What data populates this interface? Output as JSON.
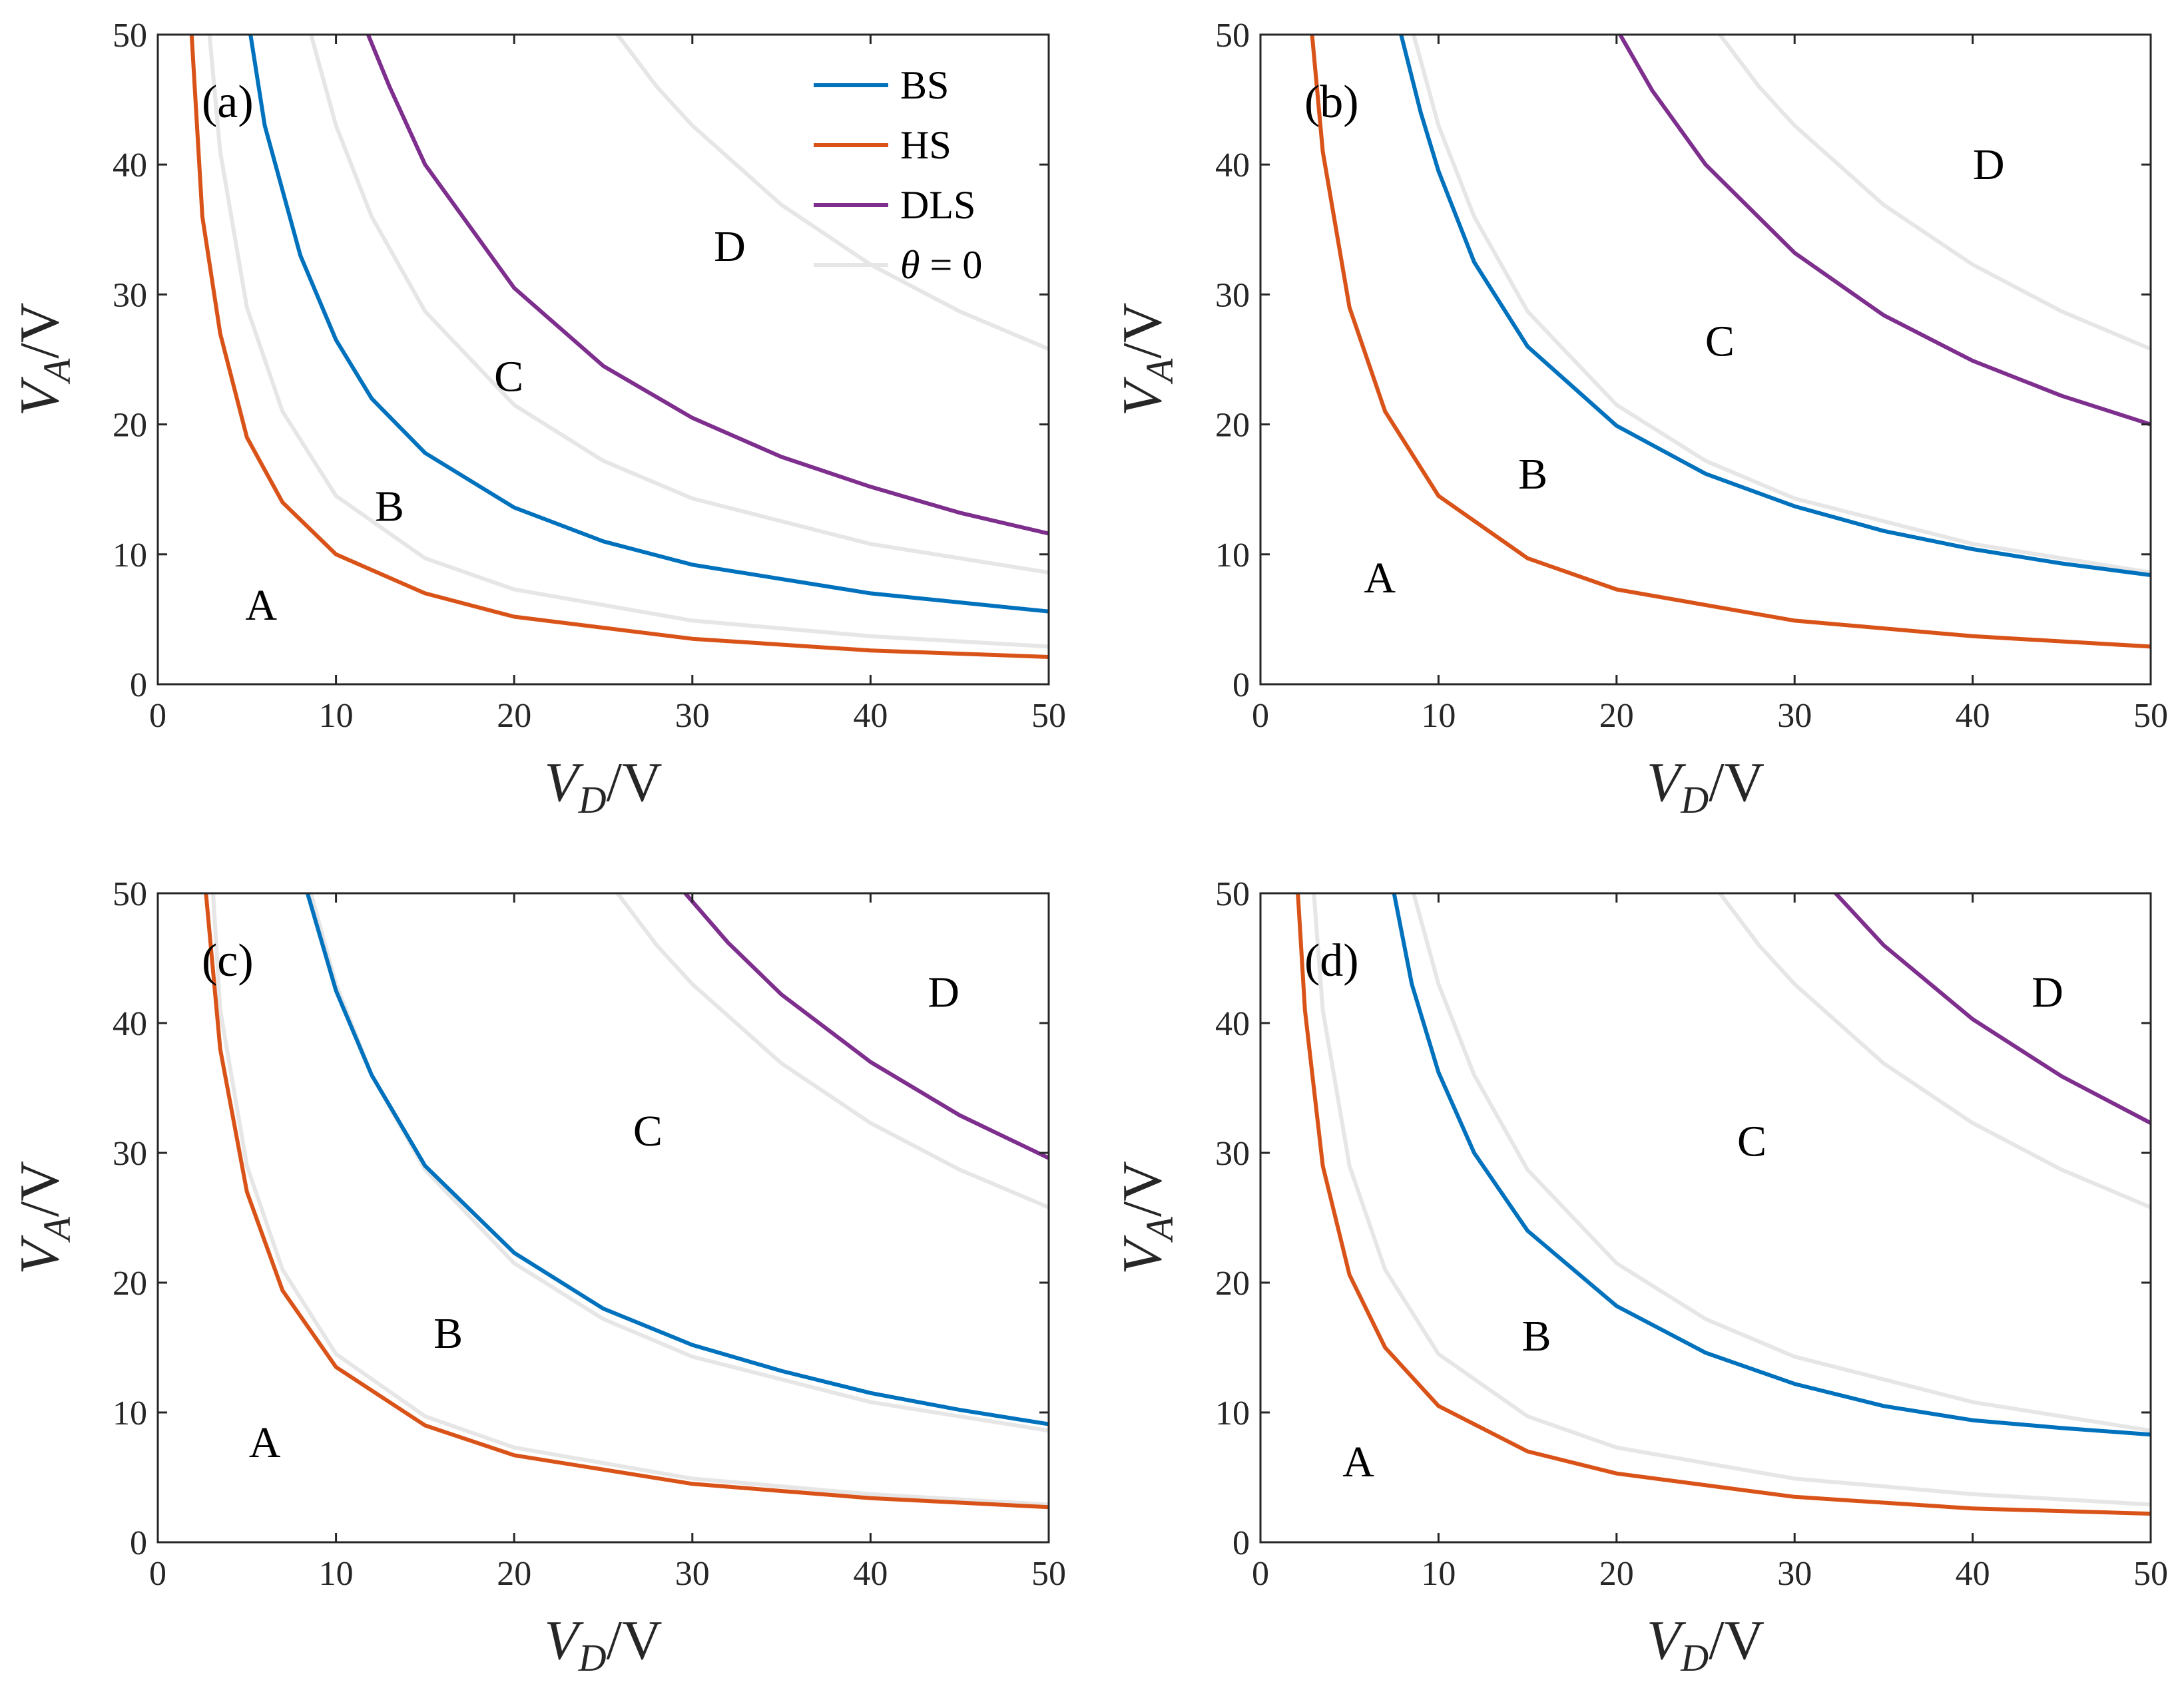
{
  "figure": {
    "colors": {
      "BS": "#0072BD",
      "HS": "#D95319",
      "DLS": "#7E2F8E",
      "theta0": "#E6E6E6",
      "axis": "#262626"
    },
    "legend": {
      "entries": [
        {
          "key": "BS",
          "label": "BS"
        },
        {
          "key": "HS",
          "label": "HS"
        },
        {
          "key": "DLS",
          "label": "DLS"
        },
        {
          "key": "theta0",
          "label": "θ = 0"
        }
      ]
    }
  },
  "chart_data": [
    {
      "type": "line",
      "panel_label": "(a)",
      "xlabel": "V_D/V",
      "ylabel": "V_A/V",
      "xlim": [
        0,
        50
      ],
      "ylim": [
        0,
        50
      ],
      "xticks": [
        0,
        10,
        20,
        30,
        40,
        50
      ],
      "yticks": [
        0,
        10,
        20,
        30,
        40,
        50
      ],
      "legend_position": "top-right",
      "series": [
        {
          "name": "HS",
          "color": "HS",
          "x": [
            1.9,
            2.5,
            3.5,
            5,
            7,
            10,
            15,
            20,
            30,
            40,
            50
          ],
          "y": [
            50,
            36,
            27,
            19,
            14,
            10,
            7,
            5.2,
            3.5,
            2.6,
            2.1
          ]
        },
        {
          "name": "BS",
          "color": "BS",
          "x": [
            5.2,
            6,
            8,
            10,
            12,
            15,
            20,
            25,
            30,
            40,
            50
          ],
          "y": [
            50,
            43,
            33,
            26.5,
            22,
            17.8,
            13.6,
            11,
            9.2,
            7,
            5.6
          ]
        },
        {
          "name": "DLS",
          "color": "DLS",
          "x": [
            11.8,
            13,
            15,
            20,
            25,
            30,
            35,
            40,
            45,
            50
          ],
          "y": [
            50,
            46,
            40,
            30.5,
            24.5,
            20.5,
            17.5,
            15.2,
            13.2,
            11.6
          ]
        },
        {
          "name": "θ = 0",
          "color": "theta0",
          "x": [
            2.9,
            3.5,
            5,
            7,
            10,
            15,
            20,
            30,
            40,
            50
          ],
          "y": [
            50,
            41,
            29,
            21,
            14.5,
            9.7,
            7.3,
            4.9,
            3.7,
            2.9
          ]
        },
        {
          "name": "θ = 0",
          "color": "theta0",
          "x": [
            8.6,
            10,
            12,
            15,
            20,
            25,
            30,
            40,
            50
          ],
          "y": [
            50,
            43,
            36,
            28.7,
            21.5,
            17.2,
            14.3,
            10.8,
            8.6
          ]
        },
        {
          "name": "θ = 0",
          "color": "theta0",
          "x": [
            25.8,
            28,
            30,
            35,
            40,
            45,
            50
          ],
          "y": [
            50,
            46,
            43,
            36.9,
            32.3,
            28.7,
            25.8
          ]
        }
      ],
      "region_labels": [
        {
          "text": "A",
          "x": 5.8,
          "y": 6.2
        },
        {
          "text": "B",
          "x": 13,
          "y": 13.8
        },
        {
          "text": "C",
          "x": 19.7,
          "y": 23.8
        },
        {
          "text": "D",
          "x": 32.1,
          "y": 33.8
        }
      ]
    },
    {
      "type": "line",
      "panel_label": "(b)",
      "xlabel": "V_D/V",
      "ylabel": "V_A/V",
      "xlim": [
        0,
        50
      ],
      "ylim": [
        0,
        50
      ],
      "xticks": [
        0,
        10,
        20,
        30,
        40,
        50
      ],
      "yticks": [
        0,
        10,
        20,
        30,
        40,
        50
      ],
      "series": [
        {
          "name": "HS",
          "color": "HS",
          "x": [
            2.9,
            3.5,
            5,
            7,
            10,
            15,
            20,
            30,
            40,
            50
          ],
          "y": [
            50,
            41,
            29,
            21,
            14.5,
            9.7,
            7.3,
            4.9,
            3.7,
            2.9
          ]
        },
        {
          "name": "BS",
          "color": "BS",
          "x": [
            7.9,
            9,
            10,
            12,
            15,
            20,
            25,
            30,
            35,
            40,
            45,
            50
          ],
          "y": [
            50,
            44,
            39.5,
            32.5,
            26,
            19.9,
            16.2,
            13.7,
            11.8,
            10.4,
            9.3,
            8.4
          ]
        },
        {
          "name": "DLS",
          "color": "DLS",
          "x": [
            20.2,
            22,
            25,
            30,
            35,
            40,
            45,
            50
          ],
          "y": [
            50,
            45.7,
            40,
            33.2,
            28.4,
            24.9,
            22.2,
            20
          ]
        },
        {
          "name": "θ = 0",
          "color": "theta0",
          "x": [
            2.9,
            3.5,
            5,
            7,
            10,
            15,
            20,
            30,
            40,
            50
          ],
          "y": [
            50,
            41,
            29,
            21,
            14.5,
            9.7,
            7.3,
            4.9,
            3.7,
            2.9
          ]
        },
        {
          "name": "θ = 0",
          "color": "theta0",
          "x": [
            8.6,
            10,
            12,
            15,
            20,
            25,
            30,
            40,
            50
          ],
          "y": [
            50,
            43,
            36,
            28.7,
            21.5,
            17.2,
            14.3,
            10.8,
            8.6
          ]
        },
        {
          "name": "θ = 0",
          "color": "theta0",
          "x": [
            25.8,
            28,
            30,
            35,
            40,
            45,
            50
          ],
          "y": [
            50,
            46,
            43,
            36.9,
            32.3,
            28.7,
            25.8
          ]
        }
      ],
      "region_labels": [
        {
          "text": "A",
          "x": 6.7,
          "y": 8.3
        },
        {
          "text": "B",
          "x": 15.3,
          "y": 16.3
        },
        {
          "text": "C",
          "x": 25.8,
          "y": 26.5
        },
        {
          "text": "D",
          "x": 40.9,
          "y": 40.1
        }
      ]
    },
    {
      "type": "line",
      "panel_label": "(c)",
      "xlabel": "V_D/V",
      "ylabel": "V_A/V",
      "xlim": [
        0,
        50
      ],
      "ylim": [
        0,
        50
      ],
      "xticks": [
        0,
        10,
        20,
        30,
        40,
        50
      ],
      "yticks": [
        0,
        10,
        20,
        30,
        40,
        50
      ],
      "series": [
        {
          "name": "θ = 0",
          "color": "theta0",
          "x": [
            3.1,
            3.5,
            5,
            7,
            10,
            15,
            20,
            30,
            40,
            50
          ],
          "y": [
            50,
            41,
            29,
            21,
            14.5,
            9.7,
            7.3,
            4.9,
            3.7,
            2.9
          ]
        },
        {
          "name": "θ = 0",
          "color": "theta0",
          "x": [
            8.6,
            10,
            12,
            15,
            20,
            25,
            30,
            40,
            50
          ],
          "y": [
            50,
            43,
            36,
            28.7,
            21.5,
            17.2,
            14.3,
            10.8,
            8.6
          ]
        },
        {
          "name": "θ = 0",
          "color": "theta0",
          "x": [
            25.8,
            28,
            30,
            35,
            40,
            45,
            50
          ],
          "y": [
            50,
            46,
            43,
            36.9,
            32.3,
            28.7,
            25.8
          ]
        },
        {
          "name": "HS",
          "color": "HS",
          "x": [
            2.7,
            3.5,
            5,
            7,
            10,
            15,
            20,
            30,
            40,
            50
          ],
          "y": [
            50,
            38,
            27,
            19.4,
            13.5,
            9,
            6.7,
            4.5,
            3.4,
            2.7
          ]
        },
        {
          "name": "BS",
          "color": "BS",
          "x": [
            8.4,
            10,
            12,
            15,
            20,
            25,
            30,
            35,
            40,
            45,
            50
          ],
          "y": [
            50,
            42.5,
            36,
            29,
            22.3,
            18,
            15.2,
            13.2,
            11.5,
            10.2,
            9.1
          ]
        },
        {
          "name": "DLS",
          "color": "DLS",
          "x": [
            29.6,
            32,
            35,
            40,
            45,
            50
          ],
          "y": [
            50,
            46.2,
            42.2,
            37,
            32.9,
            29.6
          ]
        }
      ],
      "region_labels": [
        {
          "text": "A",
          "x": 6,
          "y": 7.8
        },
        {
          "text": "B",
          "x": 16.3,
          "y": 16.2
        },
        {
          "text": "C",
          "x": 27.5,
          "y": 31.8
        },
        {
          "text": "D",
          "x": 44.1,
          "y": 42.5
        }
      ]
    },
    {
      "type": "line",
      "panel_label": "(d)",
      "xlabel": "V_D/V",
      "ylabel": "V_A/V",
      "xlim": [
        0,
        50
      ],
      "ylim": [
        0,
        50
      ],
      "xticks": [
        0,
        10,
        20,
        30,
        40,
        50
      ],
      "yticks": [
        0,
        10,
        20,
        30,
        40,
        50
      ],
      "series": [
        {
          "name": "θ = 0",
          "color": "theta0",
          "x": [
            3,
            3.5,
            5,
            7,
            10,
            15,
            20,
            30,
            40,
            50
          ],
          "y": [
            50,
            41,
            29,
            21,
            14.5,
            9.7,
            7.3,
            4.9,
            3.7,
            2.9
          ]
        },
        {
          "name": "θ = 0",
          "color": "theta0",
          "x": [
            8.6,
            10,
            12,
            15,
            20,
            25,
            30,
            40,
            50
          ],
          "y": [
            50,
            43,
            36,
            28.7,
            21.5,
            17.2,
            14.3,
            10.8,
            8.6
          ]
        },
        {
          "name": "θ = 0",
          "color": "theta0",
          "x": [
            25.8,
            28,
            30,
            35,
            40,
            45,
            50
          ],
          "y": [
            50,
            46,
            43,
            36.9,
            32.3,
            28.7,
            25.8
          ]
        },
        {
          "name": "HS",
          "color": "HS",
          "x": [
            2.1,
            2.5,
            3.5,
            5,
            7,
            10,
            15,
            20,
            30,
            40,
            50
          ],
          "y": [
            50,
            41,
            29,
            20.6,
            15,
            10.5,
            7,
            5.3,
            3.5,
            2.6,
            2.2
          ]
        },
        {
          "name": "BS",
          "color": "BS",
          "x": [
            7.5,
            8.5,
            10,
            12,
            15,
            20,
            25,
            30,
            35,
            40,
            45,
            50
          ],
          "y": [
            50,
            43,
            36.2,
            30,
            24,
            18.2,
            14.6,
            12.2,
            10.5,
            9.4,
            8.8,
            8.3
          ]
        },
        {
          "name": "DLS",
          "color": "DLS",
          "x": [
            32.3,
            35,
            40,
            45,
            50
          ],
          "y": [
            50,
            46,
            40.3,
            35.9,
            32.3
          ]
        }
      ],
      "region_labels": [
        {
          "text": "A",
          "x": 5.5,
          "y": 6.3
        },
        {
          "text": "B",
          "x": 15.5,
          "y": 16
        },
        {
          "text": "C",
          "x": 27.6,
          "y": 31
        },
        {
          "text": "D",
          "x": 44.2,
          "y": 42.5
        }
      ]
    }
  ]
}
